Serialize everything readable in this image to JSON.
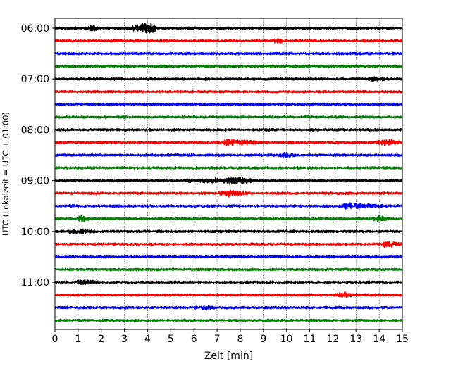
{
  "chart_data": {
    "type": "line",
    "subtype": "helicorder",
    "title": "",
    "xlabel": "Zeit  [min]",
    "ylabel": "UTC (Lokalzeit = UTC + 01:00)",
    "xlim": [
      0,
      15
    ],
    "x_ticks": [
      "0",
      "1",
      "2",
      "3",
      "4",
      "5",
      "6",
      "7",
      "8",
      "9",
      "10",
      "11",
      "12",
      "13",
      "14",
      "15"
    ],
    "y_tick_labels": [
      "06:00",
      "07:00",
      "08:00",
      "09:00",
      "10:00",
      "11:00"
    ],
    "trace_start_times": [
      "06:00",
      "06:15",
      "06:30",
      "06:45",
      "07:00",
      "07:15",
      "07:30",
      "07:45",
      "08:00",
      "08:15",
      "08:30",
      "08:45",
      "09:00",
      "09:15",
      "09:30",
      "09:45",
      "10:00",
      "10:15",
      "10:30",
      "10:45",
      "11:00",
      "11:15",
      "11:30",
      "11:45"
    ],
    "trace_minutes_per_line": 15,
    "color_cycle": [
      "#000000",
      "#ff0000",
      "#0000ff",
      "#008000"
    ],
    "grid": "vertical-dotted",
    "events": [
      {
        "trace": 0,
        "start_min": 3.0,
        "end_min": 4.5,
        "peak_min": 4.1,
        "amp": 0.9
      },
      {
        "trace": 0,
        "start_min": 1.2,
        "end_min": 1.9,
        "peak_min": 1.7,
        "amp": 0.4
      },
      {
        "trace": 1,
        "start_min": 9.3,
        "end_min": 10.0,
        "peak_min": 9.6,
        "amp": 0.35
      },
      {
        "trace": 4,
        "start_min": 13.5,
        "end_min": 14.5,
        "peak_min": 13.8,
        "amp": 0.3
      },
      {
        "trace": 9,
        "start_min": 7.2,
        "end_min": 9.0,
        "peak_min": 7.4,
        "amp": 0.55
      },
      {
        "trace": 9,
        "start_min": 13.8,
        "end_min": 15.0,
        "peak_min": 14.2,
        "amp": 0.45
      },
      {
        "trace": 10,
        "start_min": 9.6,
        "end_min": 10.4,
        "peak_min": 9.9,
        "amp": 0.4
      },
      {
        "trace": 12,
        "start_min": 5.2,
        "end_min": 8.8,
        "peak_min": 7.9,
        "amp": 0.5
      },
      {
        "trace": 13,
        "start_min": 7.0,
        "end_min": 8.5,
        "peak_min": 7.5,
        "amp": 0.45
      },
      {
        "trace": 14,
        "start_min": 12.2,
        "end_min": 14.4,
        "peak_min": 12.6,
        "amp": 0.45
      },
      {
        "trace": 15,
        "start_min": 0.9,
        "end_min": 1.6,
        "peak_min": 1.1,
        "amp": 0.45
      },
      {
        "trace": 15,
        "start_min": 13.6,
        "end_min": 14.5,
        "peak_min": 14.0,
        "amp": 0.45
      },
      {
        "trace": 16,
        "start_min": 0.5,
        "end_min": 2.0,
        "peak_min": 0.8,
        "amp": 0.35
      },
      {
        "trace": 17,
        "start_min": 14.1,
        "end_min": 15.0,
        "peak_min": 14.3,
        "amp": 0.5
      },
      {
        "trace": 20,
        "start_min": 0.8,
        "end_min": 2.0,
        "peak_min": 1.2,
        "amp": 0.3
      },
      {
        "trace": 21,
        "start_min": 12.0,
        "end_min": 12.9,
        "peak_min": 12.6,
        "amp": 0.45
      },
      {
        "trace": 22,
        "start_min": 6.3,
        "end_min": 6.9,
        "peak_min": 6.5,
        "amp": 0.35
      }
    ]
  }
}
